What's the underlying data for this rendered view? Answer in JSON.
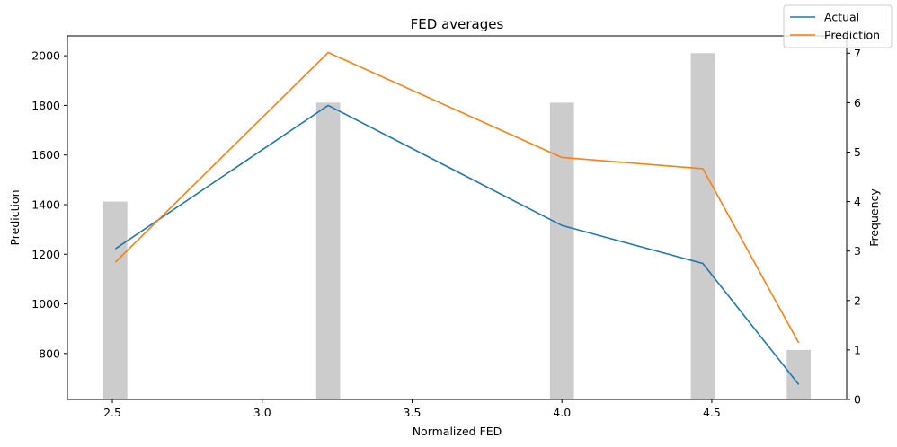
{
  "chart_data": {
    "type": "line",
    "title": "FED averages",
    "xlabel": "Normalized FED",
    "ylabel": "Prediction",
    "y2label": "Frequency",
    "xlim": [
      2.35,
      4.95
    ],
    "ylim": [
      615,
      2080
    ],
    "y2lim": [
      0,
      7.35
    ],
    "xticks": [
      "2.5",
      "3.0",
      "3.5",
      "4.0",
      "4.5"
    ],
    "xtick_values": [
      2.5,
      3.0,
      3.5,
      4.0,
      4.5
    ],
    "yticks": [
      "800",
      "1000",
      "1200",
      "1400",
      "1600",
      "1800",
      "2000"
    ],
    "ytick_values": [
      800,
      1000,
      1200,
      1400,
      1600,
      1800,
      2000
    ],
    "y2ticks": [
      "0",
      "1",
      "2",
      "3",
      "4",
      "5",
      "6",
      "7"
    ],
    "y2tick_values": [
      0,
      1,
      2,
      3,
      4,
      5,
      6,
      7
    ],
    "x": [
      2.51,
      3.22,
      4.0,
      4.47,
      4.79
    ],
    "series": [
      {
        "name": "Actual",
        "color": "#1f77b4",
        "values": [
          1222,
          1800,
          1316,
          1163,
          675
        ]
      },
      {
        "name": "Prediction",
        "color": "#ff7f0e",
        "values": [
          1168,
          2013,
          1590,
          1545,
          843
        ]
      }
    ],
    "histogram": {
      "color": "#cccccc",
      "x": [
        2.51,
        3.22,
        4.0,
        4.47,
        4.79
      ],
      "values": [
        4,
        6,
        6,
        7,
        1
      ],
      "width": 0.08
    },
    "legend": {
      "placement": "top-right"
    },
    "grid": false
  }
}
